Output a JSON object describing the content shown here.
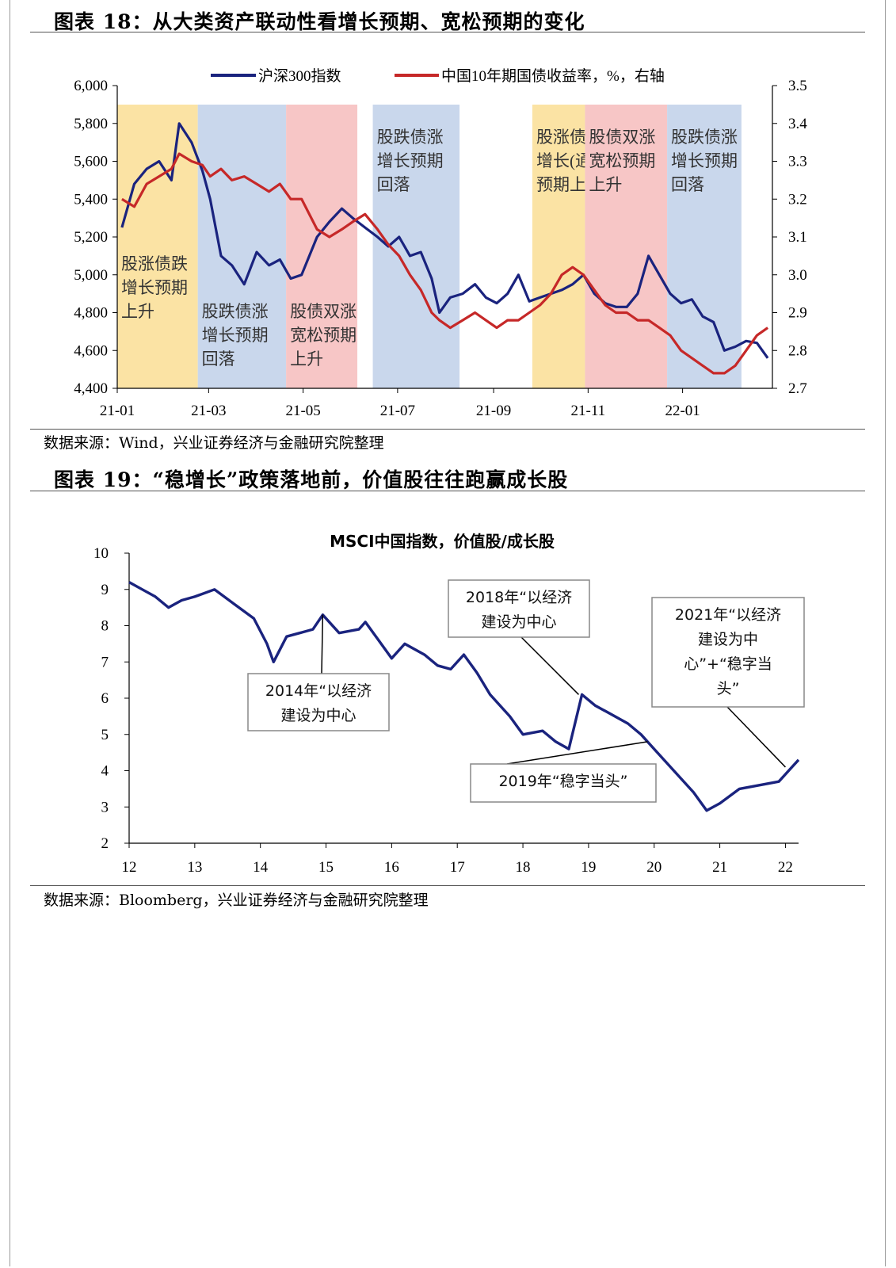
{
  "figure18": {
    "title": "图表 18：从大类资产联动性看增长预期、宽松预期的变化",
    "source": "数据来源：Wind，兴业证券经济与金融研究院整理"
  },
  "figure19": {
    "title": "图表 19：“稳增长”政策落地前，价值股往往跑赢成长股",
    "source": "数据来源：Bloomberg，兴业证券经济与金融研究院整理"
  },
  "chart_data": [
    {
      "type": "line",
      "title": "",
      "x_ticks": [
        "21-01",
        "21-03",
        "21-05",
        "21-07",
        "21-09",
        "21-11",
        "22-01"
      ],
      "xlim": [
        "2021-01",
        "2022-02"
      ],
      "y_left": {
        "ylim": [
          4400,
          6000
        ],
        "ticks": [
          "6,000",
          "5,800",
          "5,600",
          "5,400",
          "5,200",
          "5,000",
          "4,800",
          "4,600",
          "4,400"
        ]
      },
      "y_right": {
        "ylim": [
          2.7,
          3.5
        ],
        "ticks": [
          "3.5",
          "3.4",
          "3.3",
          "3.2",
          "3.1",
          "3.0",
          "2.9",
          "2.8",
          "2.7"
        ]
      },
      "legend": {
        "placement": "top",
        "entries": [
          "沪深300指数",
          "中国10年期国债收益率，%，右轴"
        ]
      },
      "series": [
        {
          "name": "沪深300指数",
          "axis": "left",
          "color": "#1a237e",
          "x": [
            "2021-01-04",
            "2021-01-12",
            "2021-01-20",
            "2021-01-28",
            "2021-02-05",
            "2021-02-10",
            "2021-02-18",
            "2021-02-25",
            "2021-03-02",
            "2021-03-09",
            "2021-03-16",
            "2021-03-24",
            "2021-04-01",
            "2021-04-09",
            "2021-04-16",
            "2021-04-23",
            "2021-04-30",
            "2021-05-10",
            "2021-05-18",
            "2021-05-26",
            "2021-06-02",
            "2021-06-10",
            "2021-06-18",
            "2021-06-25",
            "2021-07-02",
            "2021-07-09",
            "2021-07-16",
            "2021-07-23",
            "2021-07-28",
            "2021-08-04",
            "2021-08-12",
            "2021-08-20",
            "2021-08-27",
            "2021-09-03",
            "2021-09-10",
            "2021-09-17",
            "2021-09-24",
            "2021-10-01",
            "2021-10-08",
            "2021-10-15",
            "2021-10-22",
            "2021-10-29",
            "2021-11-05",
            "2021-11-12",
            "2021-11-19",
            "2021-11-26",
            "2021-12-03",
            "2021-12-10",
            "2021-12-17",
            "2021-12-24",
            "2021-12-31",
            "2022-01-07",
            "2022-01-14",
            "2022-01-21",
            "2022-01-28",
            "2022-02-04",
            "2022-02-11",
            "2022-02-18",
            "2022-02-25"
          ],
          "values": [
            5250,
            5480,
            5560,
            5600,
            5500,
            5800,
            5700,
            5550,
            5400,
            5100,
            5050,
            4950,
            5120,
            5050,
            5080,
            4980,
            5000,
            5200,
            5280,
            5350,
            5300,
            5250,
            5200,
            5150,
            5200,
            5100,
            5120,
            4980,
            4800,
            4880,
            4900,
            4950,
            4880,
            4850,
            4900,
            5000,
            4860,
            4880,
            4900,
            4920,
            4950,
            5000,
            4900,
            4850,
            4830,
            4830,
            4900,
            5100,
            5000,
            4900,
            4850,
            4870,
            4780,
            4750,
            4600,
            4620,
            4650,
            4640,
            4560
          ]
        },
        {
          "name": "中国10年期国债收益率，%，右轴",
          "axis": "right",
          "color": "#c62828",
          "x": [
            "2021-01-04",
            "2021-01-12",
            "2021-01-20",
            "2021-01-28",
            "2021-02-05",
            "2021-02-10",
            "2021-02-18",
            "2021-02-25",
            "2021-03-02",
            "2021-03-09",
            "2021-03-16",
            "2021-03-24",
            "2021-04-01",
            "2021-04-09",
            "2021-04-16",
            "2021-04-23",
            "2021-04-30",
            "2021-05-10",
            "2021-05-18",
            "2021-05-26",
            "2021-06-02",
            "2021-06-10",
            "2021-06-18",
            "2021-06-25",
            "2021-07-02",
            "2021-07-09",
            "2021-07-16",
            "2021-07-23",
            "2021-07-28",
            "2021-08-04",
            "2021-08-12",
            "2021-08-20",
            "2021-08-27",
            "2021-09-03",
            "2021-09-10",
            "2021-09-17",
            "2021-09-24",
            "2021-10-01",
            "2021-10-08",
            "2021-10-15",
            "2021-10-22",
            "2021-10-29",
            "2021-11-05",
            "2021-11-12",
            "2021-11-19",
            "2021-11-26",
            "2021-12-03",
            "2021-12-10",
            "2021-12-17",
            "2021-12-24",
            "2021-12-31",
            "2022-01-07",
            "2022-01-14",
            "2022-01-21",
            "2022-01-28",
            "2022-02-04",
            "2022-02-11",
            "2022-02-18",
            "2022-02-25"
          ],
          "values": [
            3.2,
            3.18,
            3.24,
            3.26,
            3.28,
            3.32,
            3.3,
            3.29,
            3.26,
            3.28,
            3.25,
            3.26,
            3.24,
            3.22,
            3.24,
            3.2,
            3.2,
            3.12,
            3.1,
            3.12,
            3.14,
            3.16,
            3.12,
            3.08,
            3.05,
            3.0,
            2.96,
            2.9,
            2.88,
            2.86,
            2.88,
            2.9,
            2.88,
            2.86,
            2.88,
            2.88,
            2.9,
            2.92,
            2.95,
            3.0,
            3.02,
            3.0,
            2.96,
            2.92,
            2.9,
            2.9,
            2.88,
            2.88,
            2.86,
            2.84,
            2.8,
            2.78,
            2.76,
            2.74,
            2.74,
            2.76,
            2.8,
            2.84,
            2.86
          ]
        }
      ],
      "regions": [
        {
          "label": [
            "股涨债跌",
            "增长预期",
            "上升"
          ],
          "start": "2021-01-01",
          "end": "2021-02-22",
          "color": "#fbe3a4"
        },
        {
          "label": [
            "股跌债涨",
            "增长预期",
            "回落"
          ],
          "start": "2021-02-22",
          "end": "2021-04-20",
          "color": "#c9d7ec"
        },
        {
          "label": [
            "股债双涨",
            "宽松预期",
            "上升"
          ],
          "start": "2021-04-20",
          "end": "2021-06-05",
          "color": "#f7c6c6"
        },
        {
          "label": [
            "股跌债涨",
            "增长预期",
            "回落"
          ],
          "start": "2021-06-15",
          "end": "2021-08-10",
          "color": "#c9d7ec"
        },
        {
          "label": [
            "股涨债跌",
            "增长(通胀)",
            "预期上升"
          ],
          "start": "2021-09-26",
          "end": "2021-10-30",
          "color": "#fbe3a4"
        },
        {
          "label": [
            "股债双涨",
            "宽松预期",
            "上升"
          ],
          "start": "2021-10-30",
          "end": "2021-12-22",
          "color": "#f7c6c6"
        },
        {
          "label": [
            "股跌债涨",
            "增长预期",
            "回落"
          ],
          "start": "2021-12-22",
          "end": "2022-02-08",
          "color": "#c9d7ec"
        }
      ]
    },
    {
      "type": "line",
      "title": "MSCI中国指数，价值股/成长股",
      "x_ticks": [
        "12",
        "13",
        "14",
        "15",
        "16",
        "17",
        "18",
        "19",
        "20",
        "21",
        "22"
      ],
      "xlim": [
        2012,
        2022.2
      ],
      "ylim": [
        2,
        10
      ],
      "y_ticks": [
        "10",
        "9",
        "8",
        "7",
        "6",
        "5",
        "4",
        "3",
        "2"
      ],
      "series": [
        {
          "color": "#1a237e",
          "x": [
            2012.0,
            2012.2,
            2012.4,
            2012.6,
            2012.8,
            2013.0,
            2013.3,
            2013.6,
            2013.9,
            2014.1,
            2014.2,
            2014.4,
            2014.6,
            2014.8,
            2014.95,
            2015.2,
            2015.5,
            2015.6,
            2015.8,
            2016.0,
            2016.2,
            2016.5,
            2016.7,
            2016.9,
            2017.1,
            2017.3,
            2017.5,
            2017.8,
            2018.0,
            2018.3,
            2018.5,
            2018.7,
            2018.9,
            2019.1,
            2019.3,
            2019.6,
            2019.8,
            2020.0,
            2020.3,
            2020.6,
            2020.8,
            2021.0,
            2021.3,
            2021.6,
            2021.9,
            2022.1,
            2022.2
          ],
          "values": [
            9.2,
            9.0,
            8.8,
            8.5,
            8.7,
            8.8,
            9.0,
            8.6,
            8.2,
            7.5,
            7.0,
            7.7,
            7.8,
            7.9,
            8.3,
            7.8,
            7.9,
            8.1,
            7.6,
            7.1,
            7.5,
            7.2,
            6.9,
            6.8,
            7.2,
            6.7,
            6.1,
            5.5,
            5.0,
            5.1,
            4.8,
            4.6,
            6.1,
            5.8,
            5.6,
            5.3,
            5.0,
            4.6,
            4.0,
            3.4,
            2.9,
            3.1,
            3.5,
            3.6,
            3.7,
            4.1,
            4.3
          ]
        }
      ],
      "annotations": [
        {
          "text": [
            "2014年“以经济",
            "建设为中心"
          ],
          "x": 2014.95,
          "y": 8.3
        },
        {
          "text": [
            "2018年“以经济",
            "建设为中心"
          ],
          "x": 2018.85,
          "y": 6.1
        },
        {
          "text": [
            "2019年“稳字当头”"
          ],
          "x": 2019.9,
          "y": 4.8
        },
        {
          "text": [
            "2021年“以经济",
            "建设为中",
            "心”+“稳字当",
            "头”"
          ],
          "x": 2022.0,
          "y": 4.1
        }
      ]
    }
  ]
}
